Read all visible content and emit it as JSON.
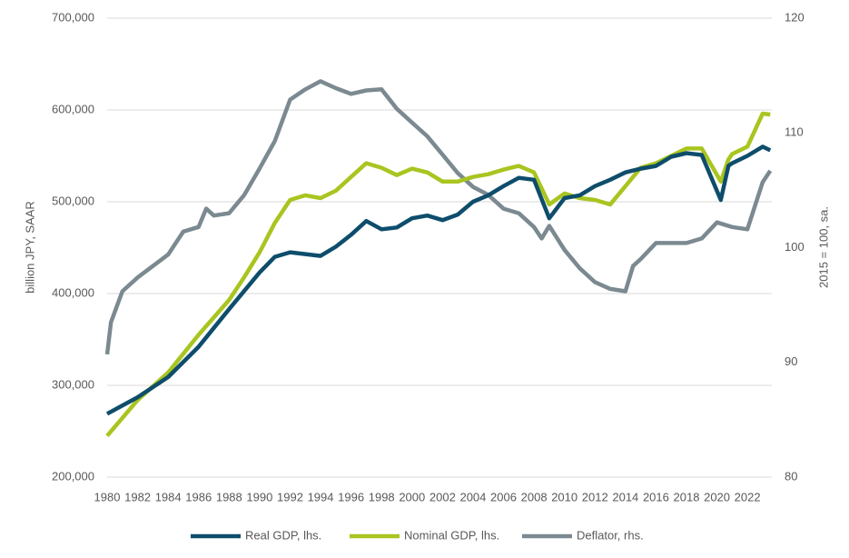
{
  "chart_data": {
    "type": "line",
    "y_label": "billion JPY, SAAR",
    "y2_label": "2015 = 100, sa.",
    "xlim": [
      1980,
      2023.6
    ],
    "xticks": [
      1980,
      1982,
      1984,
      1986,
      1988,
      1990,
      1992,
      1994,
      1996,
      1998,
      2000,
      2002,
      2004,
      2006,
      2008,
      2010,
      2012,
      2014,
      2016,
      2018,
      2020,
      2022
    ],
    "ylim": [
      200000,
      700000
    ],
    "yticks": [
      {
        "value": 200000,
        "label": "200,000"
      },
      {
        "value": 300000,
        "label": "300,000"
      },
      {
        "value": 400000,
        "label": "400,000"
      },
      {
        "value": 500000,
        "label": "500,000"
      },
      {
        "value": 600000,
        "label": "600,000"
      },
      {
        "value": 700000,
        "label": "700,000"
      }
    ],
    "y2lim": [
      80,
      120
    ],
    "y2ticks": [
      80,
      90,
      100,
      110,
      120
    ],
    "grid": true,
    "legend": "bottom",
    "series": [
      {
        "name": "Real GDP, lhs.",
        "color": "#0e4d6b",
        "x": [
          1980,
          1982,
          1984,
          1986,
          1988,
          1990,
          1991,
          1992,
          1994,
          1995,
          1996,
          1997,
          1998,
          1999,
          2000,
          2001,
          2002,
          2003,
          2004,
          2005,
          2006,
          2007,
          2008,
          2009,
          2010,
          2011,
          2012,
          2013,
          2014,
          2015,
          2016,
          2017,
          2018,
          2019,
          2020.25,
          2020.75,
          2021,
          2022,
          2023,
          2023.5
        ],
        "values": [
          269000,
          287000,
          309000,
          342000,
          383000,
          423000,
          440000,
          445000,
          441000,
          451000,
          464000,
          479000,
          470000,
          472000,
          482000,
          485000,
          480000,
          486000,
          500000,
          507000,
          517000,
          526000,
          524000,
          482000,
          504000,
          507000,
          517000,
          524000,
          532000,
          536000,
          539000,
          549000,
          553000,
          551000,
          502000,
          539000,
          542000,
          550000,
          560000,
          556000
        ]
      },
      {
        "name": "Nominal GDP, lhs.",
        "color": "#a8c520",
        "x": [
          1980,
          1982,
          1984,
          1986,
          1988,
          1989,
          1990,
          1991,
          1992,
          1993,
          1994,
          1995,
          1996,
          1997,
          1998,
          1999,
          2000,
          2001,
          2002,
          2003,
          2004,
          2005,
          2006,
          2007,
          2008,
          2009,
          2010,
          2011,
          2012,
          2013,
          2014,
          2015,
          2016,
          2017,
          2018,
          2019,
          2020.25,
          2020.75,
          2021,
          2022,
          2023,
          2023.5
        ],
        "values": [
          245000,
          284000,
          314000,
          355000,
          393000,
          418000,
          445000,
          477000,
          502000,
          507000,
          504000,
          512000,
          527000,
          542000,
          537000,
          529000,
          536000,
          532000,
          522000,
          522000,
          527000,
          530000,
          535000,
          539000,
          532000,
          497000,
          509000,
          504000,
          502000,
          497000,
          517000,
          537000,
          542000,
          550000,
          558000,
          558000,
          522000,
          546000,
          552000,
          560000,
          596000,
          595000
        ]
      },
      {
        "name": "Deflator, rhs.",
        "color": "#7b8a90",
        "axis": "y2",
        "x": [
          1980,
          1980.25,
          1981,
          1982,
          1983,
          1984,
          1985,
          1986,
          1986.5,
          1987,
          1988,
          1989,
          1990,
          1991,
          1992,
          1993,
          1994,
          1995,
          1996,
          1997,
          1998,
          1999,
          2000,
          2001,
          2002,
          2003,
          2004,
          2005,
          2006,
          2007,
          2008,
          2008.5,
          2009,
          2010,
          2011,
          2012,
          2013,
          2014,
          2014.5,
          2015,
          2016,
          2017,
          2018,
          2019,
          2020,
          2021,
          2022,
          2023,
          2023.5
        ],
        "values": [
          90.7,
          93.5,
          96.2,
          97.4,
          98.4,
          99.4,
          101.4,
          101.8,
          103.4,
          102.8,
          103.0,
          104.6,
          106.9,
          109.3,
          112.9,
          113.8,
          114.5,
          113.9,
          113.4,
          113.7,
          113.8,
          112.1,
          110.9,
          109.7,
          108.1,
          106.5,
          105.3,
          104.6,
          103.4,
          103.0,
          101.8,
          100.8,
          101.9,
          99.8,
          98.2,
          97.0,
          96.4,
          96.2,
          98.4,
          99.0,
          100.4,
          100.4,
          100.4,
          100.8,
          102.2,
          101.8,
          101.6,
          105.7,
          106.7
        ]
      }
    ]
  }
}
